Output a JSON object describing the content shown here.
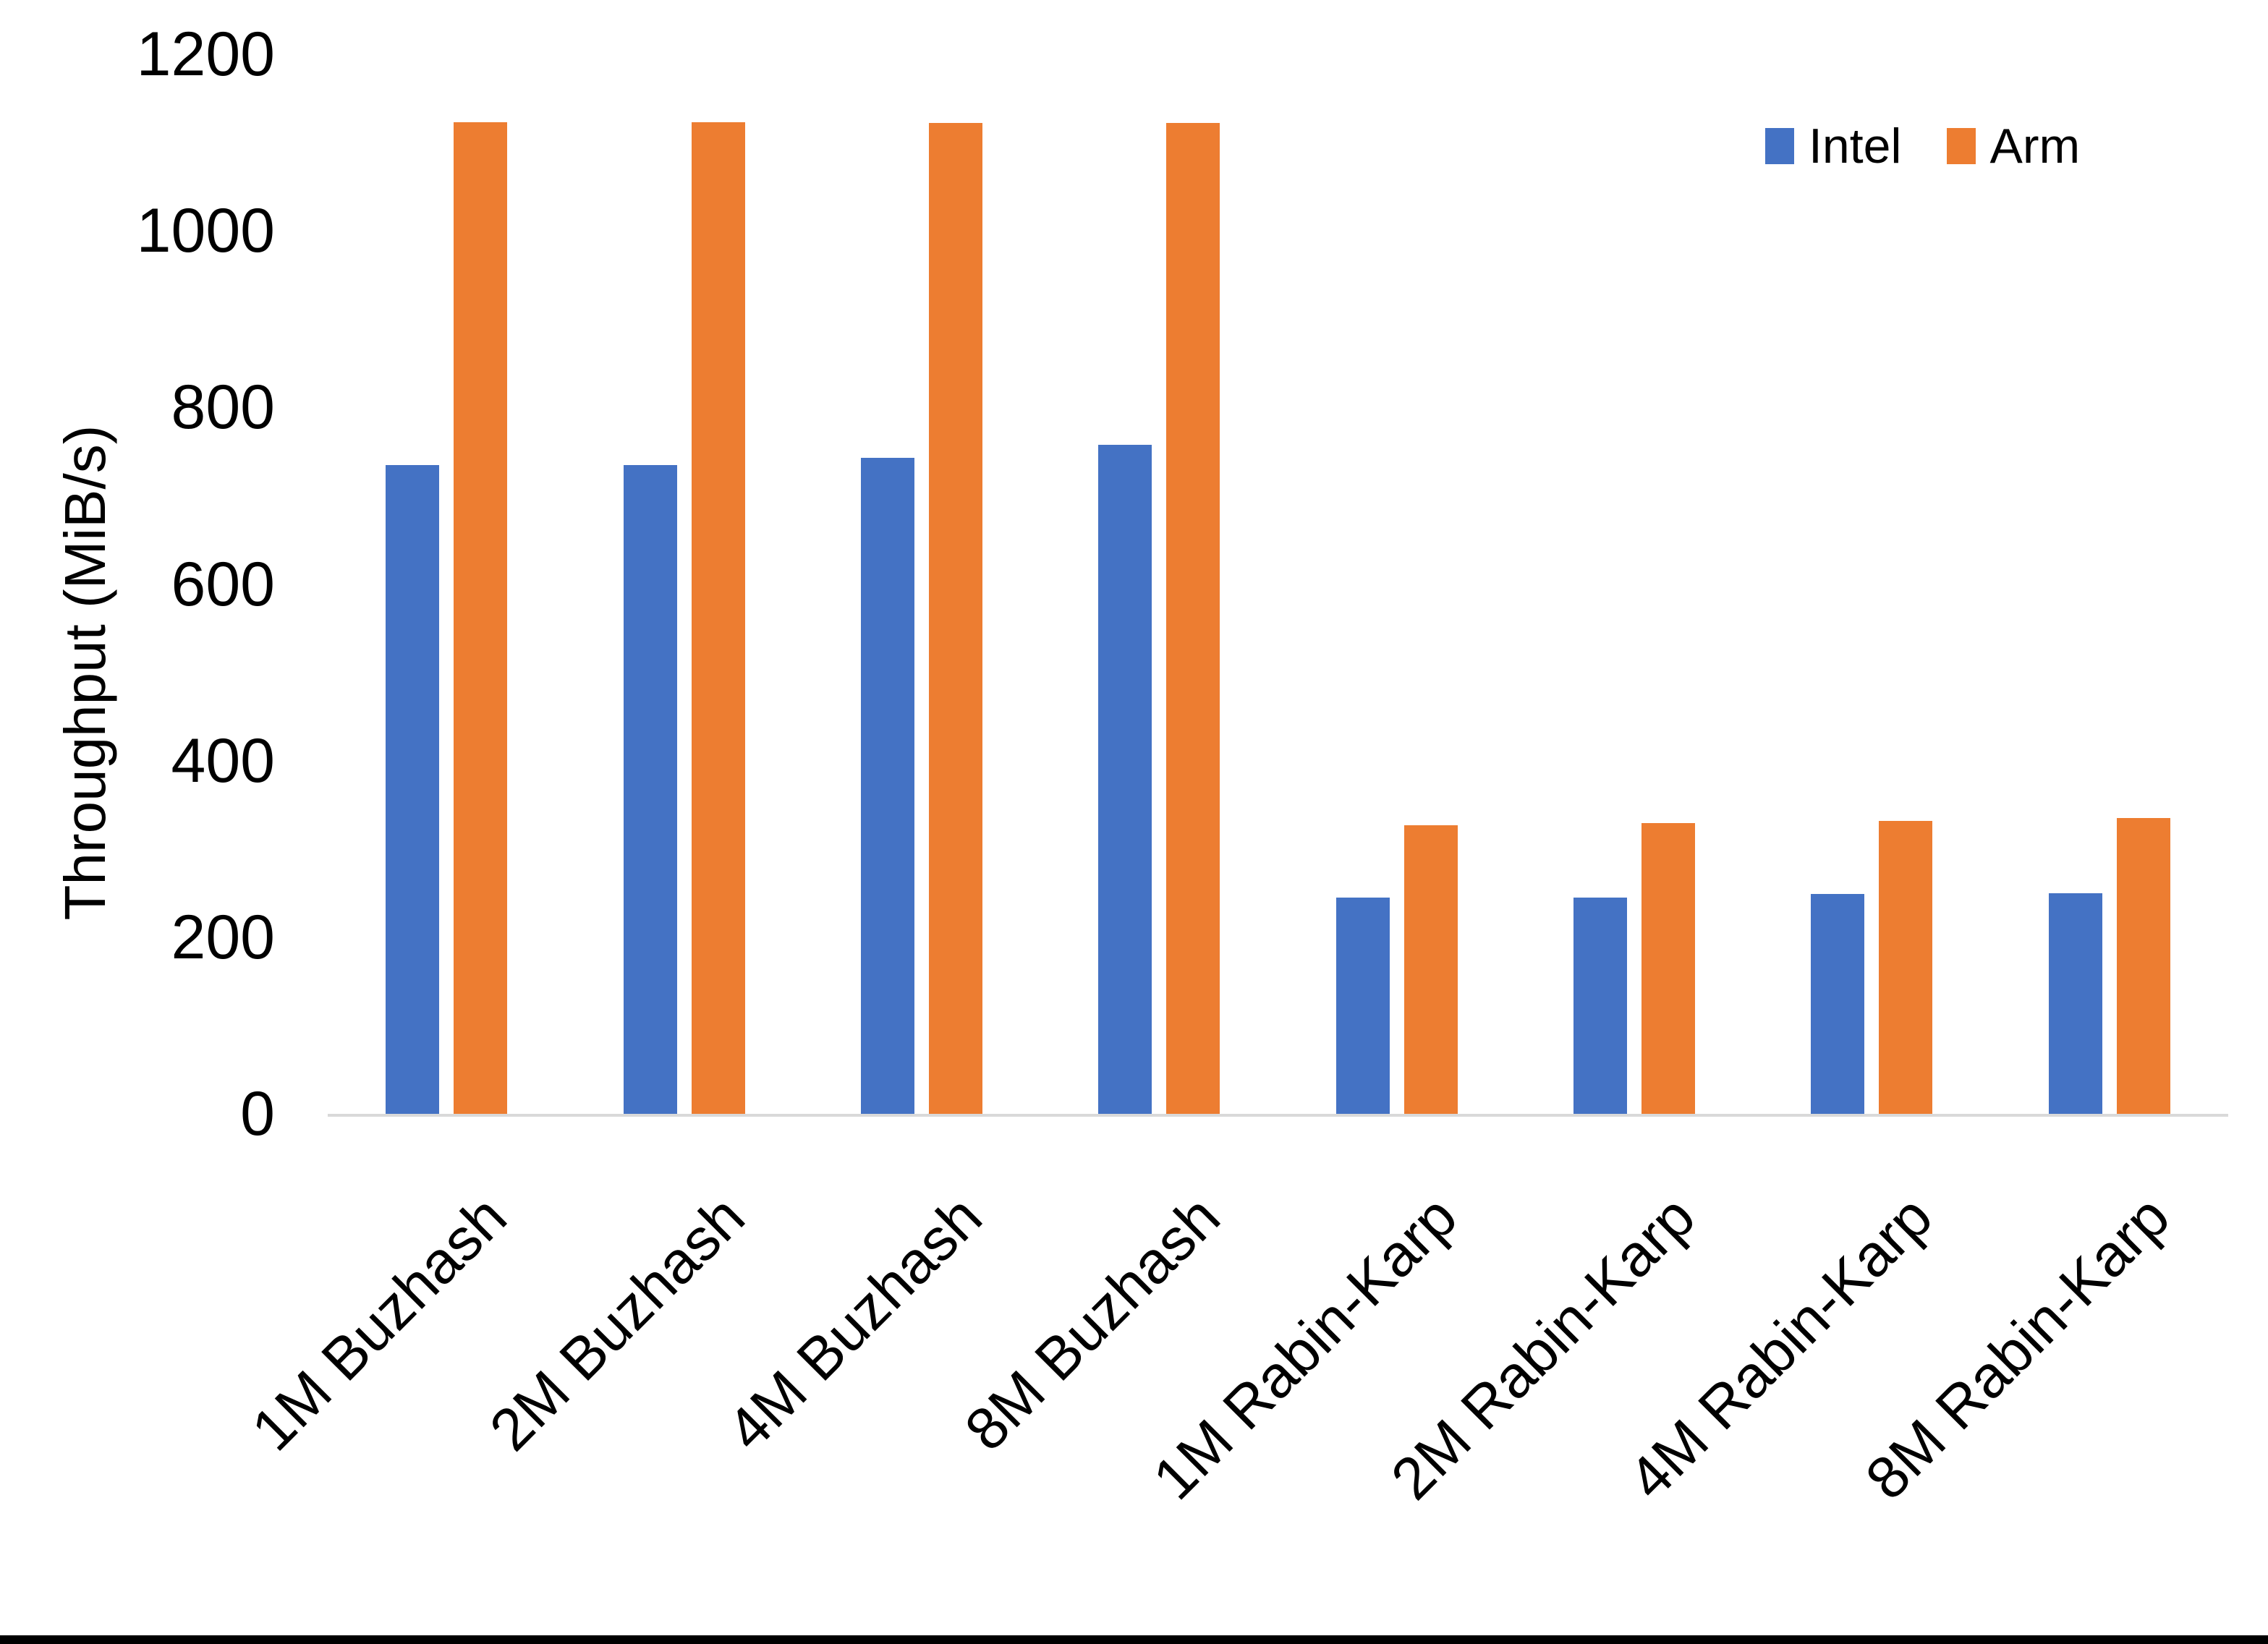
{
  "figure": {
    "background": "#FFFFFF",
    "bottom_border_color": "#000000"
  },
  "legend": {
    "position": "top-right",
    "items": [
      {
        "label": "Intel",
        "color": "#4472C4"
      },
      {
        "label": "Arm",
        "color": "#ED7D31"
      }
    ]
  },
  "chart_data": {
    "type": "bar",
    "title": "",
    "categories": [
      "1M Buzhash",
      "2M Buzhash",
      "4M Buzhash",
      "8M Buzhash",
      "1M Rabin-Karp",
      "2M Rabin-Karp",
      "4M Rabin-Karp",
      "8M Rabin-Karp"
    ],
    "series": [
      {
        "name": "Intel",
        "color": "#4472C4",
        "values": [
          735,
          735,
          743,
          758,
          245,
          245,
          249,
          250
        ]
      },
      {
        "name": "Arm",
        "color": "#ED7D31",
        "values": [
          1123,
          1123,
          1122,
          1122,
          327,
          329,
          332,
          335
        ]
      }
    ],
    "xlabel": "",
    "ylabel": "Throughput (MiB/s)",
    "ylim": [
      0,
      1200
    ],
    "yticks": [
      0,
      200,
      400,
      600,
      800,
      1000,
      1200
    ],
    "grid": "off",
    "legend_position": "top-right",
    "axis_line_color": "#D9D9D9",
    "text_color": "#000000"
  }
}
